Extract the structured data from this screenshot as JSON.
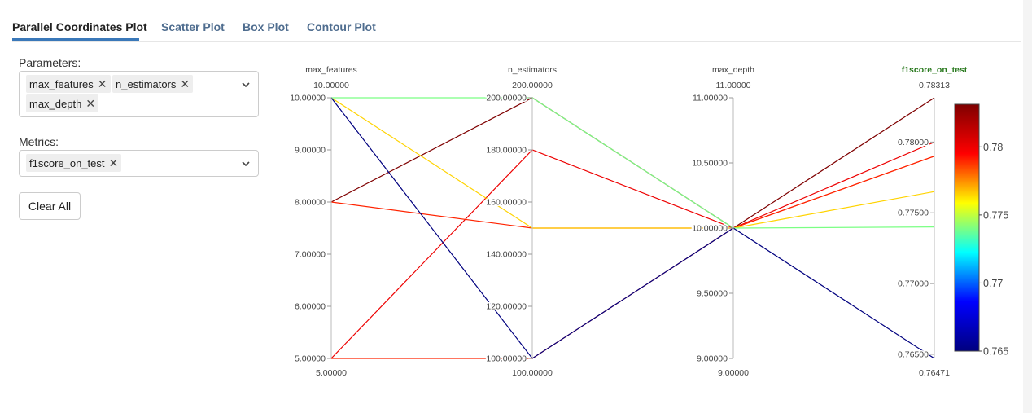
{
  "tabs": [
    {
      "label": "Parallel Coordinates Plot",
      "active": true
    },
    {
      "label": "Scatter Plot",
      "active": false
    },
    {
      "label": "Box Plot",
      "active": false
    },
    {
      "label": "Contour Plot",
      "active": false
    }
  ],
  "parameters": {
    "label": "Parameters:",
    "selected": [
      "max_features",
      "n_estimators",
      "max_depth"
    ]
  },
  "metrics": {
    "label": "Metrics:",
    "selected": [
      "f1score_on_test"
    ]
  },
  "clear_all_label": "Clear All",
  "icons": {
    "remove": "close-icon",
    "dropdown": "chevron-down-icon"
  },
  "colors": {
    "accent": "#3a78b9",
    "metric_axis_title": "#2a7a1f"
  },
  "chart_data": {
    "type": "parallel_coordinates",
    "axes": [
      {
        "name": "max_features",
        "min": 5.0,
        "max": 10.0,
        "min_label": "5.00000",
        "max_label": "10.00000",
        "ticks": [
          [
            "5.00000",
            5
          ],
          [
            "6.00000",
            6
          ],
          [
            "7.00000",
            7
          ],
          [
            "8.00000",
            8
          ],
          [
            "9.00000",
            9
          ],
          [
            "10.00000",
            10
          ]
        ]
      },
      {
        "name": "n_estimators",
        "min": 100.0,
        "max": 200.0,
        "min_label": "100.00000",
        "max_label": "200.00000",
        "ticks": [
          [
            "100.00000",
            100
          ],
          [
            "120.00000",
            120
          ],
          [
            "140.00000",
            140
          ],
          [
            "160.00000",
            160
          ],
          [
            "180.00000",
            180
          ],
          [
            "200.00000",
            200
          ]
        ]
      },
      {
        "name": "max_depth",
        "min": 9.0,
        "max": 11.0,
        "min_label": "9.00000",
        "max_label": "11.00000",
        "ticks": [
          [
            "9.00000",
            9
          ],
          [
            "9.50000",
            9.5
          ],
          [
            "10.00000",
            10
          ],
          [
            "10.50000",
            10.5
          ],
          [
            "11.00000",
            11
          ]
        ]
      },
      {
        "name": "f1score_on_test",
        "min": 0.76471,
        "max": 0.78313,
        "min_label": "0.76471",
        "max_label": "0.78313",
        "metric": true,
        "ticks": [
          [
            "0.76500",
            0.765
          ],
          [
            "0.77000",
            0.77
          ],
          [
            "0.77500",
            0.775
          ],
          [
            "0.78000",
            0.78
          ]
        ]
      }
    ],
    "lines": [
      [
        5,
        100,
        10,
        0.779
      ],
      [
        5,
        180,
        10,
        0.78
      ],
      [
        8,
        200,
        10,
        0.78313
      ],
      [
        8,
        150,
        10,
        0.779
      ],
      [
        10,
        150,
        10,
        0.7765
      ],
      [
        10,
        200,
        10,
        0.774
      ],
      [
        10,
        100,
        10,
        0.76471
      ]
    ],
    "colorbar": {
      "min": 0.765,
      "max": 0.78313,
      "ticks": [
        [
          "0.765",
          0.765
        ],
        [
          "0.77",
          0.77
        ],
        [
          "0.775",
          0.775
        ],
        [
          "0.78",
          0.78
        ]
      ],
      "colorscale": [
        "#00007f",
        "#0000ff",
        "#00ffff",
        "#ffff00",
        "#ff0000",
        "#7f0000"
      ]
    }
  }
}
